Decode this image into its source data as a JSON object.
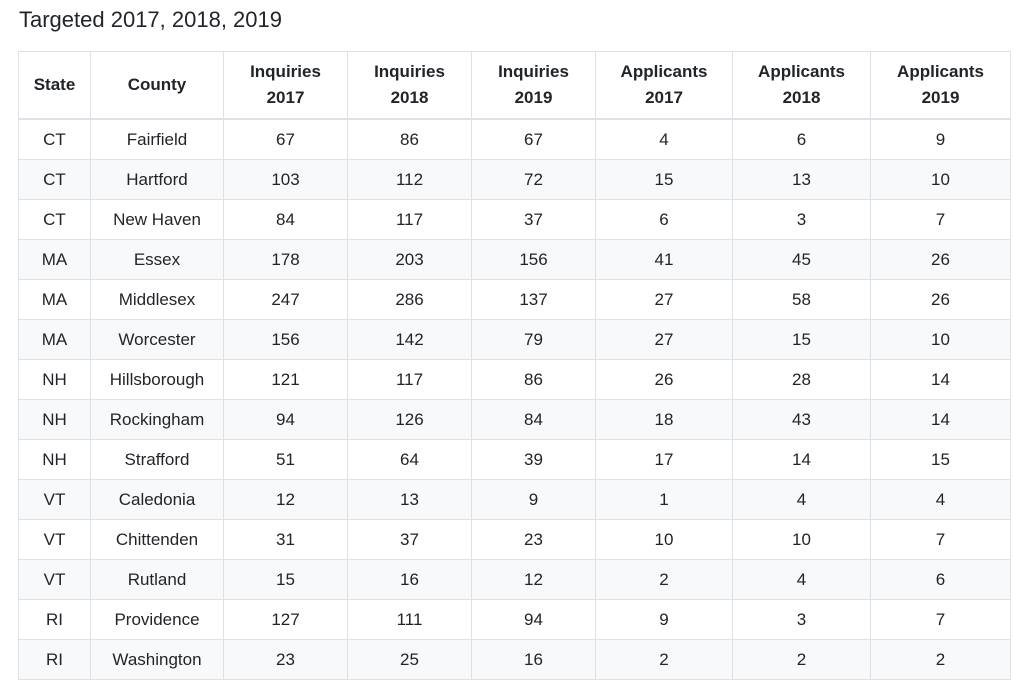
{
  "title": "Targeted 2017, 2018, 2019",
  "columns": [
    {
      "line1": "State",
      "line2": ""
    },
    {
      "line1": "County",
      "line2": ""
    },
    {
      "line1": "Inquiries",
      "line2": "2017"
    },
    {
      "line1": "Inquiries",
      "line2": "2018"
    },
    {
      "line1": "Inquiries",
      "line2": "2019"
    },
    {
      "line1": "Applicants",
      "line2": "2017"
    },
    {
      "line1": "Applicants",
      "line2": "2018"
    },
    {
      "line1": "Applicants",
      "line2": "2019"
    }
  ],
  "rows": [
    [
      "CT",
      "Fairfield",
      "67",
      "86",
      "67",
      "4",
      "6",
      "9"
    ],
    [
      "CT",
      "Hartford",
      "103",
      "112",
      "72",
      "15",
      "13",
      "10"
    ],
    [
      "CT",
      "New Haven",
      "84",
      "117",
      "37",
      "6",
      "3",
      "7"
    ],
    [
      "MA",
      "Essex",
      "178",
      "203",
      "156",
      "41",
      "45",
      "26"
    ],
    [
      "MA",
      "Middlesex",
      "247",
      "286",
      "137",
      "27",
      "58",
      "26"
    ],
    [
      "MA",
      "Worcester",
      "156",
      "142",
      "79",
      "27",
      "15",
      "10"
    ],
    [
      "NH",
      "Hillsborough",
      "121",
      "117",
      "86",
      "26",
      "28",
      "14"
    ],
    [
      "NH",
      "Rockingham",
      "94",
      "126",
      "84",
      "18",
      "43",
      "14"
    ],
    [
      "NH",
      "Strafford",
      "51",
      "64",
      "39",
      "17",
      "14",
      "15"
    ],
    [
      "VT",
      "Caledonia",
      "12",
      "13",
      "9",
      "1",
      "4",
      "4"
    ],
    [
      "VT",
      "Chittenden",
      "31",
      "37",
      "23",
      "10",
      "10",
      "7"
    ],
    [
      "VT",
      "Rutland",
      "15",
      "16",
      "12",
      "2",
      "4",
      "6"
    ],
    [
      "RI",
      "Providence",
      "127",
      "111",
      "94",
      "9",
      "3",
      "7"
    ],
    [
      "RI",
      "Washington",
      "23",
      "25",
      "16",
      "2",
      "2",
      "2"
    ]
  ]
}
